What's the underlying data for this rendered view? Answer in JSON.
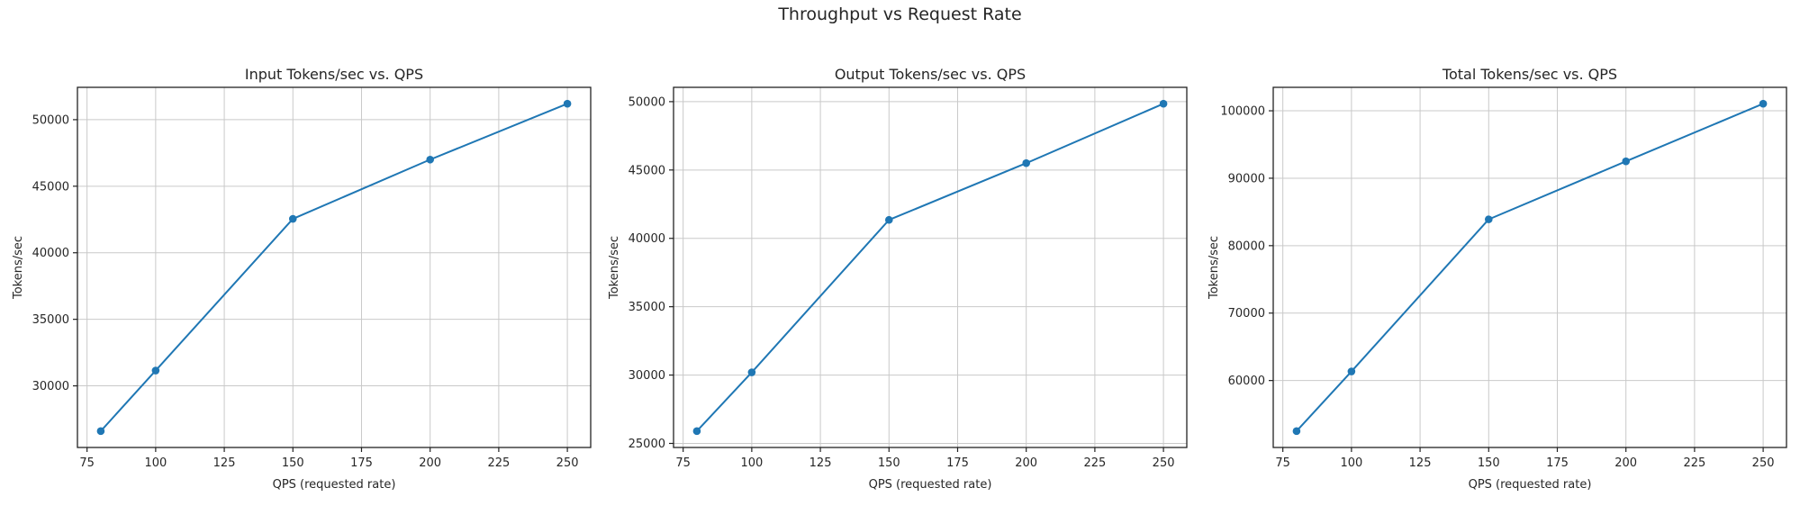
{
  "figure": {
    "title": "Throughput vs Request Rate"
  },
  "chart_data": [
    {
      "type": "line",
      "title": "Input Tokens/sec vs. QPS",
      "xlabel": "QPS (requested rate)",
      "ylabel": "Tokens/sec",
      "x": [
        80,
        100,
        150,
        200,
        250
      ],
      "y": [
        26600,
        31150,
        42550,
        47000,
        51200
      ],
      "xlim": [
        71.5,
        258.5
      ],
      "ylim": [
        25370,
        52430
      ],
      "xticks": [
        75,
        100,
        125,
        150,
        175,
        200,
        225,
        250
      ],
      "yticks": [
        30000,
        35000,
        40000,
        45000,
        50000
      ],
      "grid": true,
      "legend": "none",
      "line_color": "#1f77b4",
      "marker": "circle"
    },
    {
      "type": "line",
      "title": "Output Tokens/sec vs. QPS",
      "xlabel": "QPS (requested rate)",
      "ylabel": "Tokens/sec",
      "x": [
        80,
        100,
        150,
        200,
        250
      ],
      "y": [
        25900,
        30200,
        41350,
        45500,
        49850
      ],
      "xlim": [
        71.5,
        258.5
      ],
      "ylim": [
        24703,
        51047
      ],
      "xticks": [
        75,
        100,
        125,
        150,
        175,
        200,
        225,
        250
      ],
      "yticks": [
        25000,
        30000,
        35000,
        40000,
        45000,
        50000
      ],
      "grid": true,
      "legend": "none",
      "line_color": "#1f77b4",
      "marker": "circle"
    },
    {
      "type": "line",
      "title": "Total Tokens/sec vs. QPS",
      "xlabel": "QPS (requested rate)",
      "ylabel": "Tokens/sec",
      "x": [
        80,
        100,
        150,
        200,
        250
      ],
      "y": [
        52500,
        61350,
        83900,
        92500,
        101050
      ],
      "xlim": [
        71.5,
        258.5
      ],
      "ylim": [
        50073,
        103477
      ],
      "xticks": [
        75,
        100,
        125,
        150,
        175,
        200,
        225,
        250
      ],
      "yticks": [
        60000,
        70000,
        80000,
        90000,
        100000
      ],
      "grid": true,
      "legend": "none",
      "line_color": "#1f77b4",
      "marker": "circle"
    }
  ],
  "style": {
    "grid_color": "#c9c9c9",
    "spine_color": "#222222",
    "text_color": "#262626",
    "background": "#ffffff"
  }
}
